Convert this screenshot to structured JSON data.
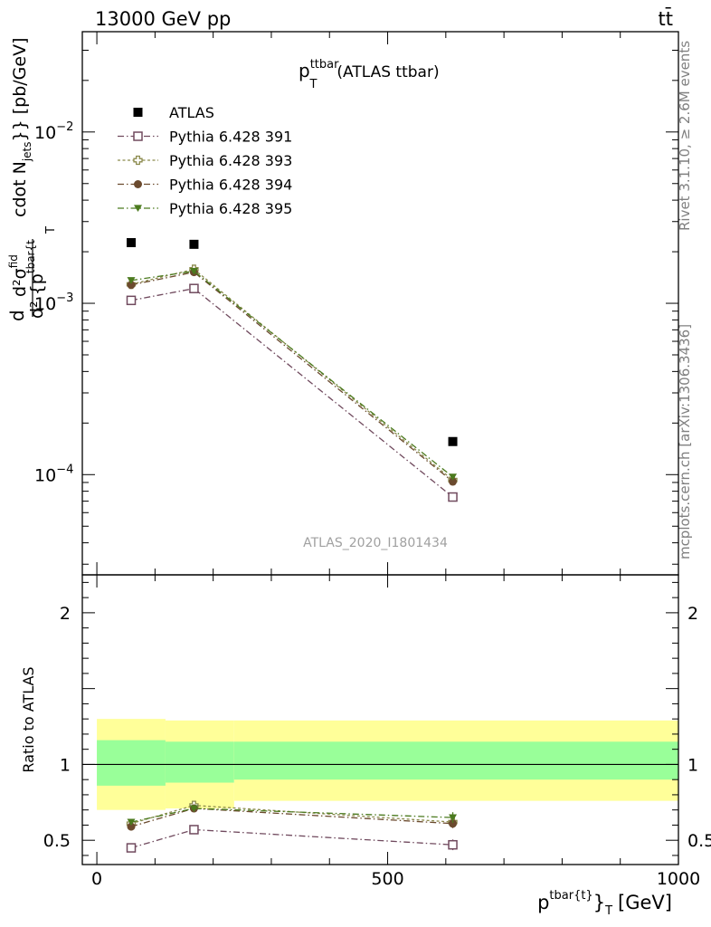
{
  "header": {
    "left": "13000 GeV pp",
    "right": "tt̄"
  },
  "side_labels": {
    "rivet": "Rivet 3.1.10, ≥ 2.6M events",
    "mcplots": "mcplots.cern.ch [arXiv:1306.3436]"
  },
  "chart_data": [
    {
      "type": "scatter",
      "title": "p_T^ttbar (ATLAS ttbar)",
      "title_parts": {
        "main": "p",
        "sup": "ttbar",
        "sub": "T",
        "rest": "(ATLAS ttbar)"
      },
      "ylabel": "d d²σ^{fid} / d² {p^{tbar{t}}_T cdot N_{jets}} [pb/GeV]",
      "ylabel_parts": {
        "d": "d",
        "sigma_sup": "d²σ",
        "fid": "fid",
        "den": "d² {p",
        "den_sup": "tbar{t",
        "den_sub": "T",
        "tail": "cdot N",
        "jets": "jets",
        "unit": "}} [pb/GeV]"
      },
      "yscale": "log",
      "ylim": [
        2.6e-05,
        0.0385
      ],
      "xlim": [
        -25,
        1000
      ],
      "yticks": [
        {
          "value": 0.0001,
          "base": "10",
          "exp": "−4"
        },
        {
          "value": 0.001,
          "base": "10",
          "exp": "−3"
        },
        {
          "value": 0.01,
          "base": "10",
          "exp": "−2"
        }
      ],
      "watermark": "ATLAS_2020_I1801434",
      "legend_position": "top-left",
      "series": [
        {
          "name": "ATLAS",
          "color": "#000000",
          "marker": "filled-square",
          "line": "none",
          "x": [
            59,
            167,
            612
          ],
          "y": [
            0.00226,
            0.00221,
            0.000156
          ]
        },
        {
          "name": "Pythia 6.428 391",
          "color": "#704a5e",
          "marker": "open-square",
          "line": "dash-dot",
          "x": [
            59,
            167,
            612
          ],
          "y": [
            0.00104,
            0.00122,
            7.4e-05
          ]
        },
        {
          "name": "Pythia 6.428 393",
          "color": "#8b8a4c",
          "marker": "open-cross",
          "line": "dotted",
          "x": [
            59,
            167,
            612
          ],
          "y": [
            0.00129,
            0.00158,
            9.3e-05
          ]
        },
        {
          "name": "Pythia 6.428 394",
          "color": "#6b4a2e",
          "marker": "filled-circle",
          "line": "dash-dot",
          "x": [
            59,
            167,
            612
          ],
          "y": [
            0.00128,
            0.00152,
            9.1e-05
          ]
        },
        {
          "name": "Pythia 6.428 395",
          "color": "#4b7a1e",
          "marker": "filled-triangle-down",
          "line": "dash-dot",
          "x": [
            59,
            167,
            612
          ],
          "y": [
            0.00136,
            0.00154,
            9.7e-05
          ]
        }
      ]
    },
    {
      "type": "scatter",
      "ylabel": "Ratio to ATLAS",
      "xlabel_parts": {
        "p": "p",
        "sup": "tbar{t}",
        "close": "}",
        "sub": "T",
        "unit": "[GeV]"
      },
      "xlim": [
        -25,
        1000
      ],
      "ylim": [
        0.34,
        2.25
      ],
      "xticks": [
        0,
        500,
        1000
      ],
      "yticks": [
        0.5,
        1,
        2
      ],
      "ytick_labels": [
        "0.5",
        "1",
        "2"
      ],
      "xtick_labels": [
        "0",
        "500",
        "1000"
      ],
      "bands": {
        "edges": [
          0,
          118,
          236,
          1000
        ],
        "total_unc": [
          [
            0.7,
            1.3
          ],
          [
            0.71,
            1.29
          ],
          [
            0.76,
            1.29
          ]
        ],
        "stat_unc": [
          [
            0.86,
            1.16
          ],
          [
            0.88,
            1.15
          ],
          [
            0.9,
            1.15
          ]
        ],
        "total_color": "#ffff99",
        "stat_color": "#99ff99"
      },
      "series": [
        {
          "name": "Pythia 6.428 391",
          "x": [
            59,
            167,
            612
          ],
          "y": [
            0.45,
            0.57,
            0.47
          ],
          "err": [
            0.015,
            0.02,
            0.035
          ]
        },
        {
          "name": "Pythia 6.428 393",
          "x": [
            59,
            167,
            612
          ],
          "y": [
            0.61,
            0.73,
            0.62
          ],
          "err": [
            0.015,
            0.02,
            0.03
          ]
        },
        {
          "name": "Pythia 6.428 394",
          "x": [
            59,
            167,
            612
          ],
          "y": [
            0.59,
            0.71,
            0.61
          ],
          "err": [
            0.015,
            0.02,
            0.03
          ]
        },
        {
          "name": "Pythia 6.428 395",
          "x": [
            59,
            167,
            612
          ],
          "y": [
            0.62,
            0.71,
            0.65
          ],
          "err": [
            0.015,
            0.02,
            0.035
          ]
        }
      ]
    }
  ]
}
